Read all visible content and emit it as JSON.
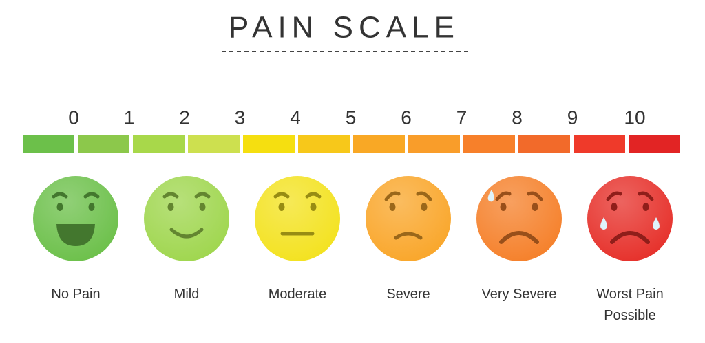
{
  "title": "PAIN SCALE",
  "scale": {
    "numbers": [
      0,
      1,
      2,
      3,
      4,
      5,
      6,
      7,
      8,
      9,
      10
    ],
    "segment_colors": [
      "#6cc04a",
      "#8cc84b",
      "#a8d84a",
      "#cde04f",
      "#f5df10",
      "#f7c81a",
      "#f9a825",
      "#f99d2a",
      "#f7802a",
      "#f26a2a",
      "#ef3a2a",
      "#e22424"
    ]
  },
  "faces": [
    {
      "label": "No Pain",
      "color": "#6cc04a"
    },
    {
      "label": "Mild",
      "color": "#9fd64e"
    },
    {
      "label": "Moderate",
      "color": "#f3e21f"
    },
    {
      "label": "Severe",
      "color": "#f9a62a"
    },
    {
      "label": "Very Severe",
      "color": "#f5802a"
    },
    {
      "label": "Worst Pain Possible",
      "color": "#e6302a"
    }
  ]
}
